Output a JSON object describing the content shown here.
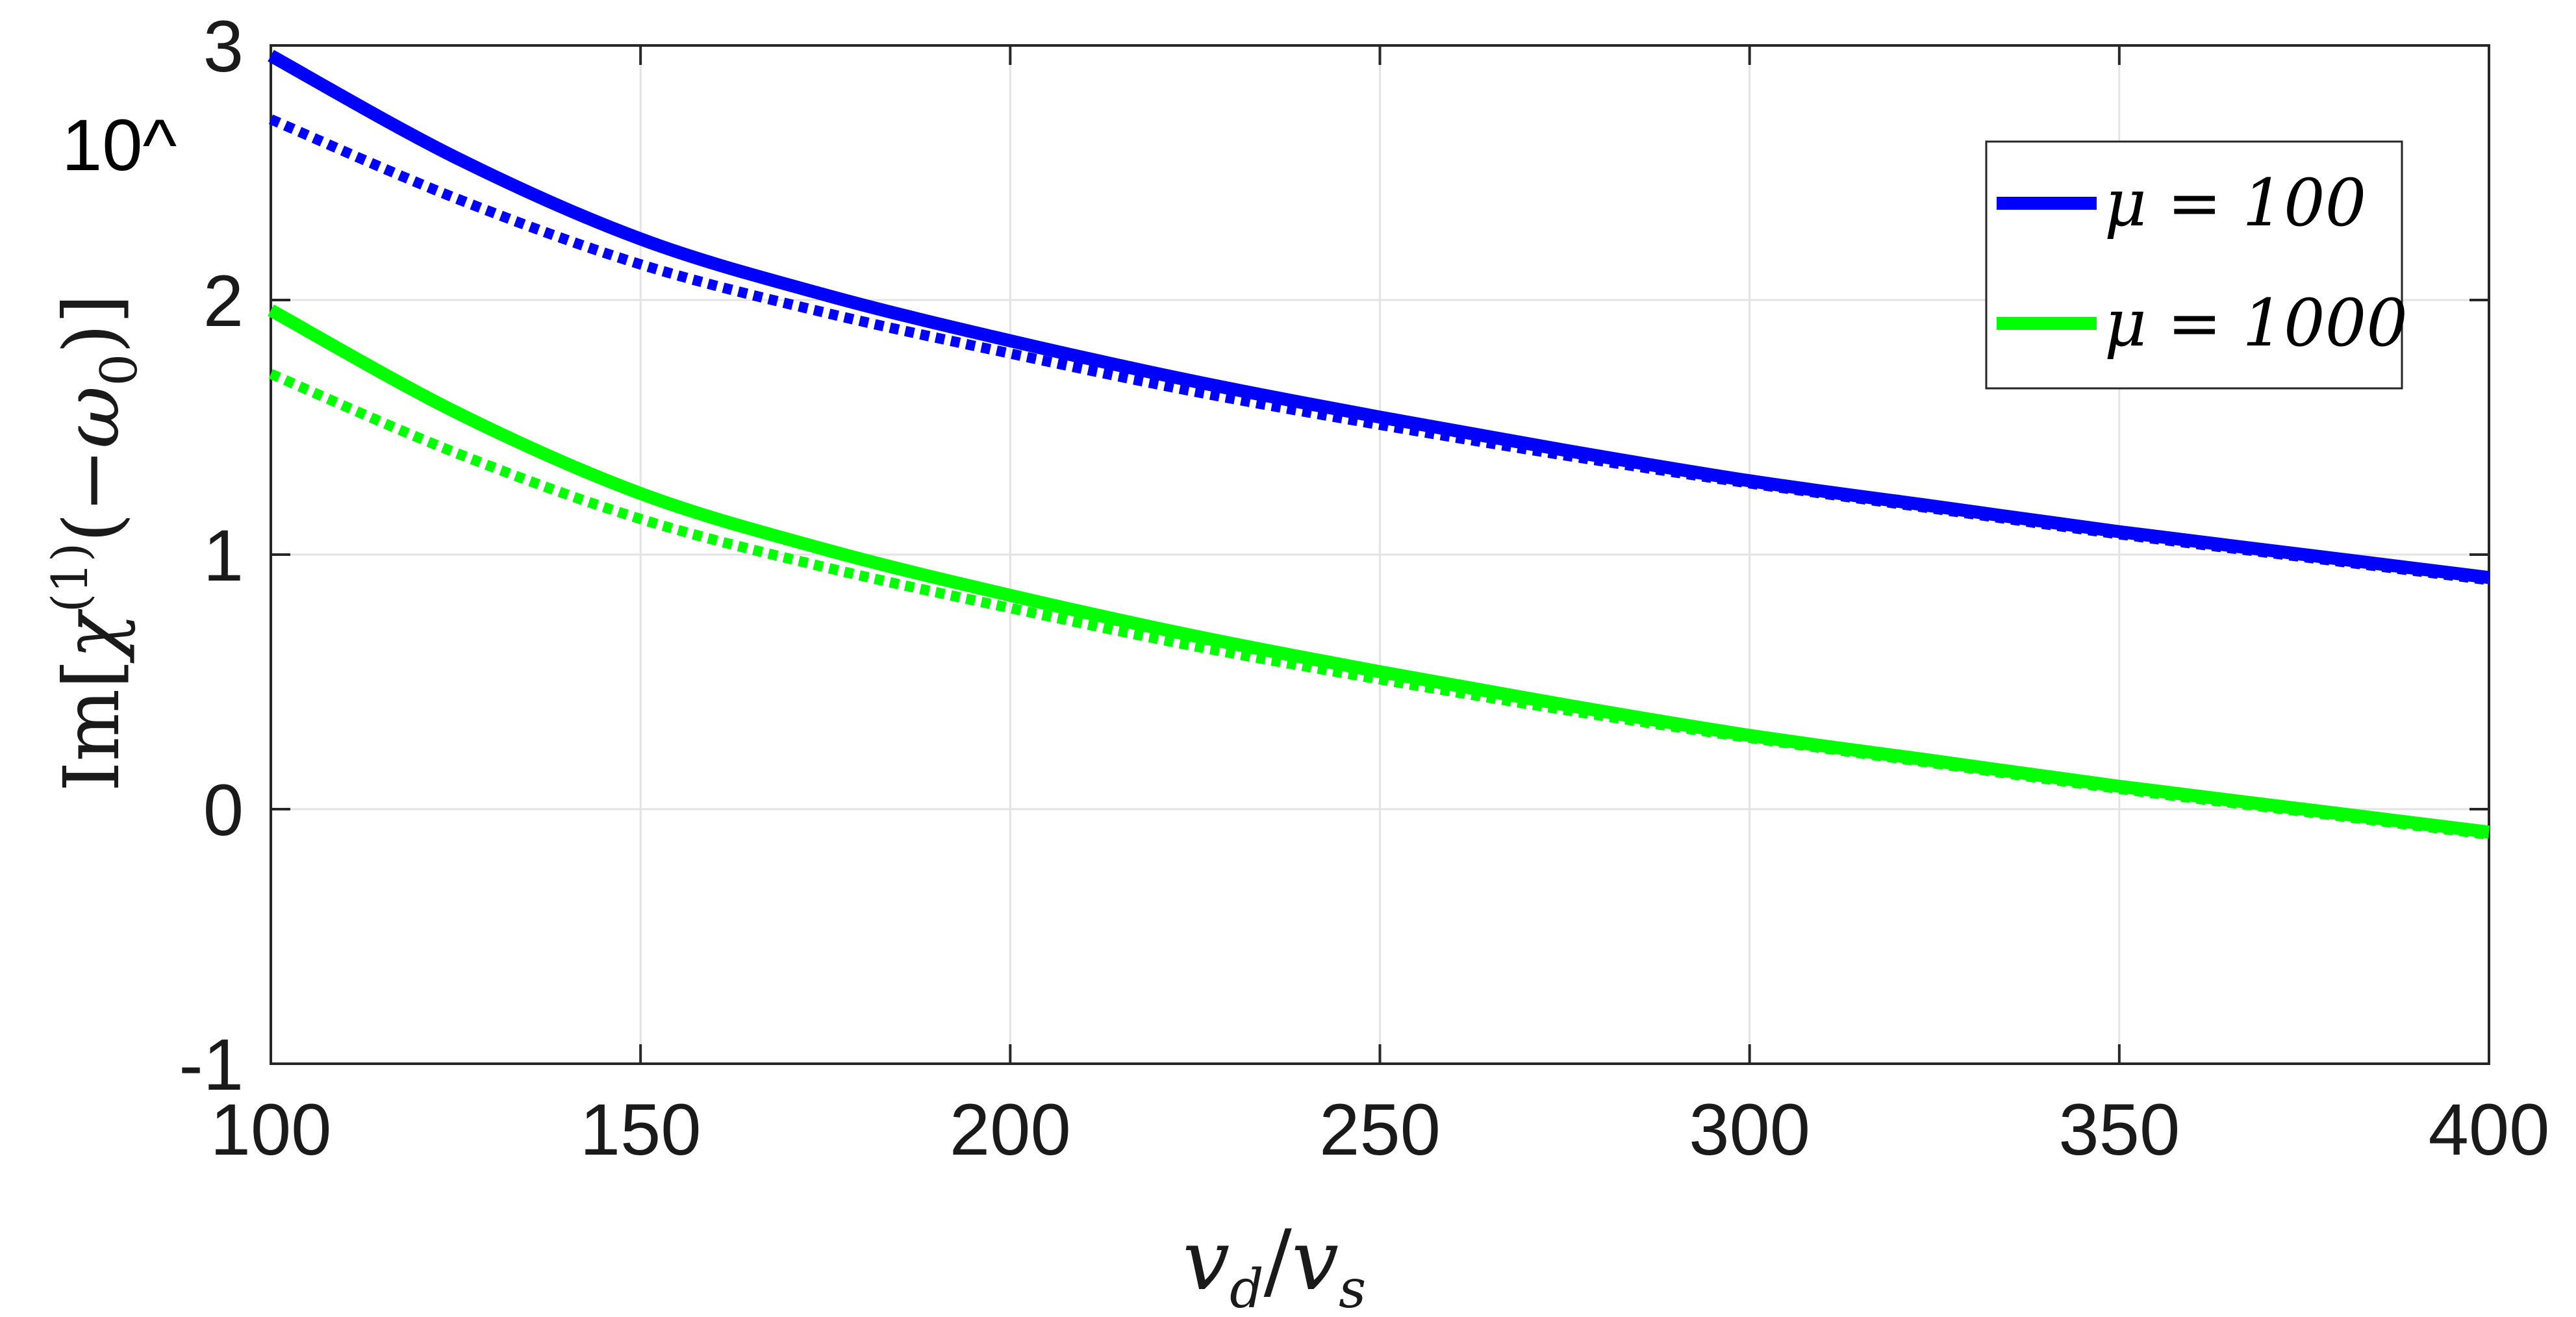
{
  "chart_data": {
    "type": "line",
    "xlabel": "v_d/v_s",
    "ylabel": "Im[χ(1)(−ω0)]",
    "y_exponent_label": "10^",
    "xlim": [
      100,
      400
    ],
    "ylim": [
      -1,
      3
    ],
    "x_ticks": [
      "100",
      "150",
      "200",
      "250",
      "300",
      "350",
      "400"
    ],
    "y_ticks": [
      "-1",
      "0",
      "1",
      "2",
      "3"
    ],
    "grid": true,
    "legend_position": "top-right",
    "x": [
      100,
      125,
      150,
      175,
      200,
      225,
      250,
      275,
      300,
      325,
      350,
      375,
      400
    ],
    "series": [
      {
        "name": "μ = 100",
        "style": "solid",
        "color": "#0000ff",
        "values": [
          2.96,
          2.56,
          2.24,
          2.02,
          1.84,
          1.68,
          1.54,
          1.41,
          1.29,
          1.19,
          1.09,
          1.0,
          0.91
        ]
      },
      {
        "name": "",
        "style": "dotted",
        "color": "#0000ff",
        "values": [
          2.71,
          2.4,
          2.14,
          1.95,
          1.79,
          1.64,
          1.51,
          1.39,
          1.28,
          1.18,
          1.08,
          0.99,
          0.9
        ]
      },
      {
        "name": "μ = 1000",
        "style": "solid",
        "color": "#00ff00",
        "values": [
          1.96,
          1.56,
          1.24,
          1.02,
          0.84,
          0.68,
          0.54,
          0.41,
          0.29,
          0.19,
          0.09,
          0.0,
          -0.09
        ]
      },
      {
        "name": "",
        "style": "dotted",
        "color": "#00ff00",
        "values": [
          1.71,
          1.4,
          1.14,
          0.95,
          0.79,
          0.64,
          0.51,
          0.39,
          0.28,
          0.18,
          0.08,
          -0.01,
          -0.1
        ]
      }
    ]
  }
}
